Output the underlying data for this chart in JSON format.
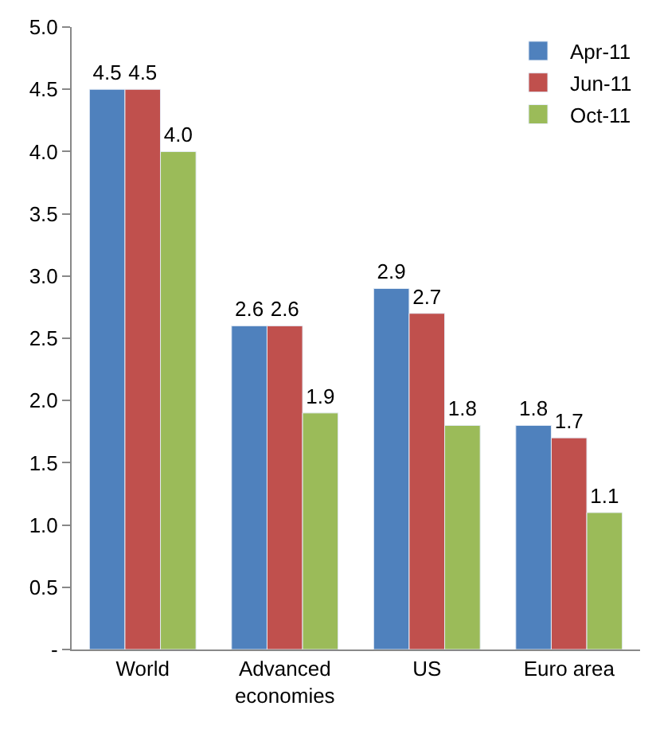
{
  "chart_data": {
    "type": "bar",
    "categories": [
      "World",
      "Advanced economies",
      "US",
      "Euro area"
    ],
    "series": [
      {
        "name": "Apr-11",
        "color": "#4f81bd",
        "values": [
          4.5,
          2.6,
          2.9,
          1.8
        ],
        "value_labels": [
          "4.5",
          "2.6",
          "2.9",
          "1.8"
        ]
      },
      {
        "name": "Jun-11",
        "color": "#c0504d",
        "values": [
          4.5,
          2.6,
          2.7,
          1.7
        ],
        "value_labels": [
          "4.5",
          "2.6",
          "2.7",
          "1.7"
        ]
      },
      {
        "name": "Oct-11",
        "color": "#9bbb59",
        "values": [
          4.0,
          1.9,
          1.8,
          1.1
        ],
        "value_labels": [
          "4.0",
          "1.9",
          "1.8",
          "1.1"
        ]
      }
    ],
    "ylim": [
      0,
      5
    ],
    "yticks": [
      {
        "value": 0,
        "label": "-"
      },
      {
        "value": 0.5,
        "label": "0.5"
      },
      {
        "value": 1,
        "label": "1.0"
      },
      {
        "value": 1.5,
        "label": "1.5"
      },
      {
        "value": 2,
        "label": "2.0"
      },
      {
        "value": 2.5,
        "label": "2.5"
      },
      {
        "value": 3,
        "label": "3.0"
      },
      {
        "value": 3.5,
        "label": "3.5"
      },
      {
        "value": 4,
        "label": "4.0"
      },
      {
        "value": 4.5,
        "label": "4.5"
      },
      {
        "value": 5,
        "label": "5.0"
      }
    ],
    "legend": "top right"
  }
}
